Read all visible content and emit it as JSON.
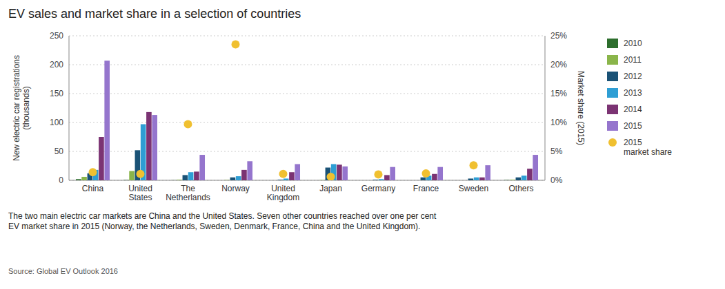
{
  "chart_data": {
    "type": "bar",
    "title": "EV sales and market share in a selection of countries",
    "ylabel": "New electric car registrations\n(thousands)",
    "y2label": "Market share (2015)",
    "annotations": [
      "The two main electric car markets are China and the United States. Seven other countries reached over one per cent\nEV market share in 2015 (Norway, the Netherlands, Sweden, Denmark, France, China and the United Kingdom).",
      "Source: Global EV Outlook 2016"
    ],
    "categories": [
      "China",
      "United\nStates",
      "The\nNetherlands",
      "Norway",
      "United\nKingdom",
      "Japan",
      "Germany",
      "France",
      "Sweden",
      "Others"
    ],
    "series": [
      {
        "name": "2010",
        "color": "#2d6e2d",
        "values": [
          2,
          0.5,
          0.2,
          0,
          0,
          0,
          0,
          0,
          0,
          0.5
        ]
      },
      {
        "name": "2011",
        "color": "#8ab54a",
        "values": [
          6,
          16,
          1,
          0.5,
          0,
          0.5,
          0,
          0,
          0,
          1
        ]
      },
      {
        "name": "2012",
        "color": "#1a5276",
        "values": [
          12,
          52,
          9,
          5,
          1,
          22,
          1,
          5,
          3,
          5
        ]
      },
      {
        "name": "2013",
        "color": "#2e9ed4",
        "values": [
          18,
          97,
          14,
          7,
          3,
          28,
          2,
          8,
          5,
          8
        ]
      },
      {
        "name": "2014",
        "color": "#7b3373",
        "values": [
          75,
          118,
          15,
          18,
          14,
          27,
          9,
          11,
          5,
          20
        ]
      },
      {
        "name": "2015",
        "color": "#9575cd",
        "values": [
          207,
          113,
          44,
          33,
          28,
          24,
          23,
          23,
          26,
          44
        ]
      },
      {
        "name": "2015\nmarket share",
        "type": "scatter",
        "axis": "y2",
        "color": "#f0c030",
        "marker": "circle",
        "values": [
          1.4,
          1.1,
          9.7,
          23.5,
          1.1,
          0.6,
          1.0,
          1.2,
          2.6,
          null
        ]
      }
    ],
    "ylim": [
      0,
      250
    ],
    "yticks": [
      0,
      50,
      100,
      150,
      200,
      250
    ],
    "y2lim": [
      0,
      25
    ],
    "y2ticks": [
      {
        "value": 0,
        "label": "0%"
      },
      {
        "value": 5,
        "label": "5%"
      },
      {
        "value": 10,
        "label": "10%"
      },
      {
        "value": 15,
        "label": "15%"
      },
      {
        "value": 20,
        "label": "20%"
      },
      {
        "value": 25,
        "label": "25%"
      }
    ],
    "grid": true,
    "legend": "right"
  }
}
